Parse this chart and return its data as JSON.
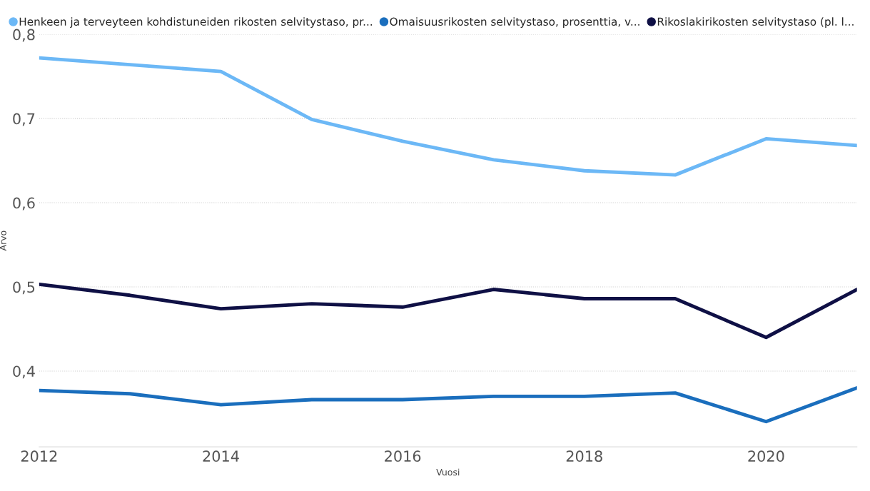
{
  "chart_data": {
    "type": "line",
    "xlabel": "Vuosi",
    "ylabel": "Arvo",
    "x": [
      2012,
      2013,
      2014,
      2015,
      2016,
      2017,
      2018,
      2019,
      2020,
      2021
    ],
    "series": [
      {
        "name": "Henkeen ja terveyteen kohdistuneiden rikosten selvitystaso, pr...",
        "color": "#6cb8f6",
        "values": [
          0.772,
          0.764,
          0.756,
          0.699,
          0.673,
          0.651,
          0.638,
          0.633,
          0.676,
          0.668
        ]
      },
      {
        "name": "Omaisuusrikosten selvitystaso, prosenttia, v...",
        "color": "#1a6ebd",
        "values": [
          0.377,
          0.373,
          0.36,
          0.366,
          0.366,
          0.37,
          0.37,
          0.374,
          0.34,
          0.38
        ]
      },
      {
        "name": "Rikoslakirikosten selvitystaso (pl. l...",
        "color": "#0f1045",
        "values": [
          0.503,
          0.49,
          0.474,
          0.48,
          0.476,
          0.497,
          0.486,
          0.486,
          0.44,
          0.497
        ]
      }
    ],
    "xlim": [
      2012,
      2021
    ],
    "xticks": [
      2012,
      2014,
      2016,
      2018,
      2020
    ],
    "ylim": [
      0.31,
      0.8
    ],
    "yticks": [
      {
        "value": 0.4,
        "label": "0,4"
      },
      {
        "value": 0.5,
        "label": "0,5"
      },
      {
        "value": 0.6,
        "label": "0,6"
      },
      {
        "value": 0.7,
        "label": "0,7"
      },
      {
        "value": 0.8,
        "label": "0,8"
      }
    ],
    "grid": "y",
    "legend": "top",
    "line_style": "solid",
    "marker": "none"
  }
}
